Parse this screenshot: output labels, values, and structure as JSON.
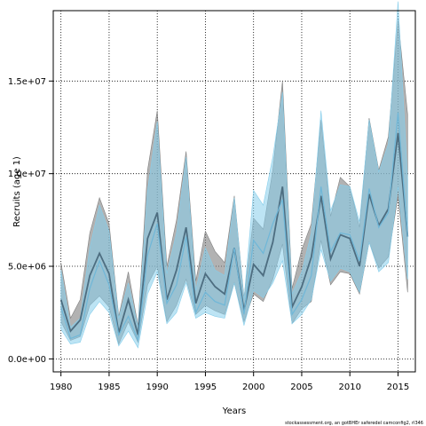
{
  "chart_data": {
    "type": "line",
    "title": "",
    "xlabel": "Years",
    "ylabel": "Recruits (age 1)",
    "footer": "stockassessment.org, an gotBHEr saferedel camconfig2, rl346",
    "xlim": [
      1979.2,
      2016.8
    ],
    "ylim": [
      -700000,
      18800000
    ],
    "x_ticks": [
      1980,
      1985,
      1990,
      1995,
      2000,
      2005,
      2010,
      2015
    ],
    "y_ticks": [
      0,
      5000000,
      10000000,
      15000000
    ],
    "y_tick_labels": [
      "0.0e+00",
      "5.0e+06",
      "1.0e+07",
      "1.5e+07"
    ],
    "grid": true,
    "colors": {
      "grey_band": "#7f7f7f",
      "grey_line": "#4d6d80",
      "blue_band": "#87ceeb",
      "blue_line": "#6fb7d8"
    },
    "x": [
      1980,
      1981,
      1982,
      1983,
      1984,
      1985,
      1986,
      1987,
      1988,
      1989,
      1990,
      1991,
      1992,
      1993,
      1994,
      1995,
      1996,
      1997,
      1998,
      1999,
      2000,
      2001,
      2002,
      2003,
      2004,
      2005,
      2006,
      2007,
      2008,
      2009,
      2010,
      2011,
      2012,
      2013,
      2014,
      2015,
      2016
    ],
    "series": [
      {
        "estimate": [
          3200000,
          1500000,
          2100000,
          4500000,
          5700000,
          4600000,
          1400000,
          3200000,
          1300000,
          6500000,
          7900000,
          3200000,
          4800000,
          7100000,
          3000000,
          4600000,
          3900000,
          3500000,
          6000000,
          2600000,
          5100000,
          4500000,
          6300000,
          9300000,
          2800000,
          3900000,
          5500000,
          8800000,
          5400000,
          6700000,
          6500000,
          5000000,
          8900000,
          7200000,
          8100000,
          12200000,
          6600000
        ],
        "lower": [
          2000000,
          1000000,
          1200000,
          2900000,
          3400000,
          2800000,
          800000,
          2000000,
          900000,
          4000000,
          5000000,
          2000000,
          2900000,
          4300000,
          2400000,
          2900000,
          2600000,
          2400000,
          4100000,
          2000000,
          3500000,
          3100000,
          4300000,
          6200000,
          1900000,
          2700000,
          3100000,
          6400000,
          4000000,
          4700000,
          4600000,
          3500000,
          6300000,
          4900000,
          5500000,
          8800000,
          3600000
        ],
        "upper": [
          5200000,
          2200000,
          3200000,
          6800000,
          8700000,
          7300000,
          2300000,
          4700000,
          1800000,
          10200000,
          13400000,
          5000000,
          7500000,
          11200000,
          4200000,
          6900000,
          5800000,
          5200000,
          8800000,
          3300000,
          7600000,
          7000000,
          10200000,
          15000000,
          3800000,
          5900000,
          7300000,
          12900000,
          7700000,
          9800000,
          9300000,
          7100000,
          13000000,
          10200000,
          12000000,
          18300000,
          13200000
        ]
      },
      {
        "estimate": [
          2800000,
          1100000,
          1300000,
          3800000,
          5300000,
          4000000,
          1300000,
          2300000,
          1000000,
          5600000,
          7300000,
          3000000,
          4000000,
          6600000,
          2500000,
          3600000,
          3100000,
          2900000,
          6000000,
          2400000,
          6400000,
          5700000,
          7300000,
          8600000,
          2400000,
          3200000,
          4500000,
          9300000,
          5800000,
          6800000,
          6700000,
          5300000,
          9200000,
          7100000,
          7900000,
          13300000,
          6600000
        ],
        "lower": [
          1600000,
          800000,
          900000,
          2400000,
          3100000,
          2500000,
          700000,
          1500000,
          600000,
          3500000,
          4700000,
          1900000,
          2500000,
          4100000,
          2200000,
          2500000,
          2300000,
          2200000,
          4100000,
          1800000,
          3700000,
          3300000,
          4100000,
          5300000,
          1900000,
          2400000,
          3200000,
          5900000,
          4200000,
          4900000,
          4700000,
          3600000,
          6300000,
          4700000,
          5200000,
          9300000,
          4300000
        ],
        "upper": [
          4800000,
          1700000,
          2200000,
          6000000,
          8300000,
          6900000,
          2200000,
          4100000,
          1700000,
          9100000,
          12800000,
          4600000,
          6800000,
          10900000,
          3700000,
          6000000,
          4800000,
          4500000,
          8700000,
          3200000,
          9100000,
          8300000,
          10900000,
          14400000,
          3500000,
          4700000,
          6800000,
          13400000,
          8000000,
          9400000,
          9300000,
          7400000,
          12900000,
          10100000,
          11600000,
          19300000,
          9700000
        ]
      }
    ]
  }
}
